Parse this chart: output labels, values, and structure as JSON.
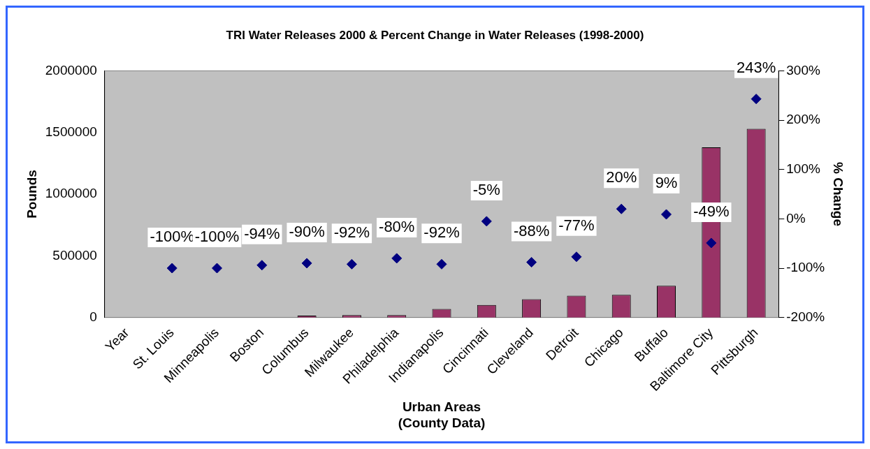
{
  "chart_data": {
    "type": "bar",
    "title": "TRI Water Releases 2000 & Percent Change in Water Releases (1998-2000)",
    "xlabel": "Urban Areas\n(County Data)",
    "ylabel": "Pounds",
    "y2label": "% Change",
    "categories": [
      "Year",
      "St. Louis",
      "Minneapolis",
      "Boston",
      "Columbus",
      "Milwaukee",
      "Philadelphia",
      "Indianapolis",
      "Cincinnati",
      "Cleveland",
      "Detroit",
      "Chicago",
      "Buffalo",
      "Baltimore City",
      "Pittsburgh"
    ],
    "series": [
      {
        "color": "#993366",
        "values": [
          null,
          0,
          0,
          0,
          15000,
          20000,
          20000,
          69000,
          102000,
          148000,
          177000,
          183000,
          257000,
          1380000,
          1530000
        ]
      },
      {
        "type": "scatter",
        "axis": "y2",
        "color": "#000080",
        "marker": "diamond",
        "values": [
          null,
          -100,
          -100,
          -94,
          -90,
          -92,
          -80,
          -92,
          -5,
          -88,
          -77,
          20,
          9,
          -49,
          243
        ],
        "value_labels": [
          null,
          "-100%",
          "-100%",
          "-94%",
          "-90%",
          "-92%",
          "-80%",
          "-92%",
          "-5%",
          "-88%",
          "-77%",
          "20%",
          "9%",
          "-49%",
          "243%"
        ]
      }
    ],
    "ylim": [
      0,
      2000000
    ],
    "yticks": [
      0,
      500000,
      1000000,
      1500000,
      2000000
    ],
    "y2lim": [
      -200,
      300
    ],
    "y2ticks": [
      {
        "value": -200,
        "label": "-200%"
      },
      {
        "value": -100,
        "label": "-100%"
      },
      {
        "value": 0,
        "label": "0%"
      },
      {
        "value": 100,
        "label": "100%"
      },
      {
        "value": 200,
        "label": "200%"
      },
      {
        "value": 300,
        "label": "300%"
      }
    ],
    "grid": false,
    "legend": false
  }
}
